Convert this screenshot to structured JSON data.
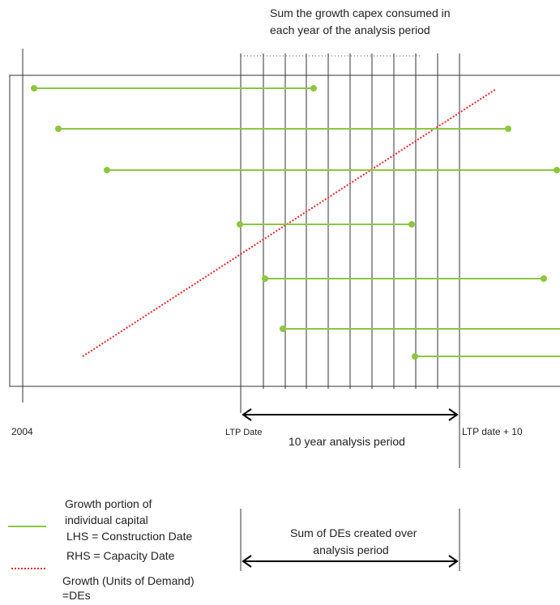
{
  "header": {
    "line1": "Sum the growth capex consumed in",
    "line2": "each year of the analysis period"
  },
  "axis": {
    "start_label": "2004",
    "ltp_label": "LTP Date",
    "ltp_plus_label": "LTP date + 10",
    "period_label": "10 year analysis period"
  },
  "legend": {
    "capital_line1": "Growth portion of",
    "capital_line2": "individual capital",
    "capital_line3": "LHS = Construction Date",
    "capital_line4": "RHS = Capacity Date",
    "demand_line1": "Growth (Units of Demand)",
    "demand_line2": "=DEs"
  },
  "bottom_box": {
    "line1": "Sum of DEs created over",
    "line2": "analysis period"
  },
  "colors": {
    "capital": "#8dc63f",
    "demand": "#e8262b",
    "frame": "#333333"
  }
}
